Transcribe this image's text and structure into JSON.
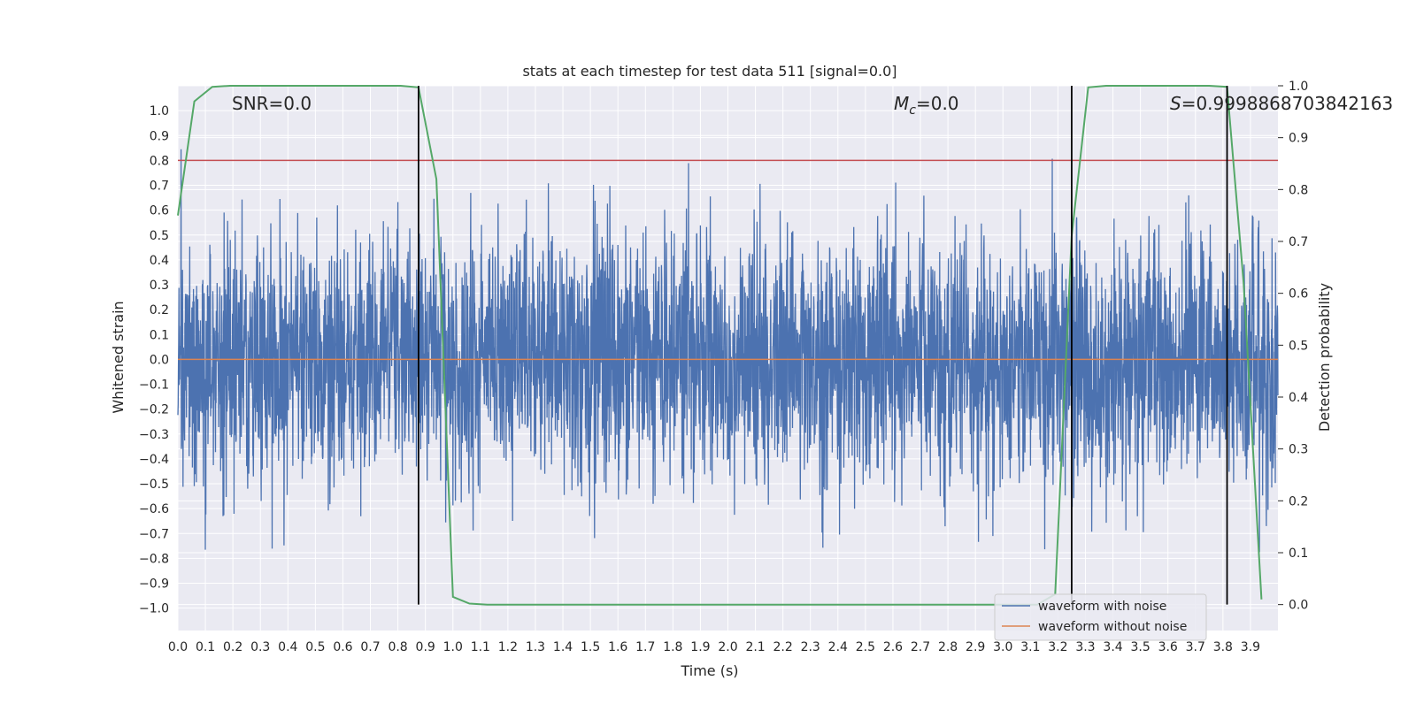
{
  "chart_data": {
    "type": "line",
    "title": "stats at each timestep for test data 511 [signal=0.0]",
    "xlabel": "Time (s)",
    "ylabel_left": "Whitened strain",
    "ylabel_right": "Detection probability",
    "xlim": [
      0.0,
      4.0
    ],
    "ylim_left": [
      -1.09,
      1.1
    ],
    "ylim_right": [
      -0.05,
      1.0
    ],
    "x_ticks": [
      "0.0",
      "0.1",
      "0.2",
      "0.3",
      "0.4",
      "0.5",
      "0.6",
      "0.7",
      "0.8",
      "0.9",
      "1.0",
      "1.1",
      "1.2",
      "1.3",
      "1.4",
      "1.5",
      "1.6",
      "1.7",
      "1.8",
      "1.9",
      "2.0",
      "2.1",
      "2.2",
      "2.3",
      "2.4",
      "2.5",
      "2.6",
      "2.7",
      "2.8",
      "2.9",
      "3.0",
      "3.1",
      "3.2",
      "3.3",
      "3.4",
      "3.5",
      "3.6",
      "3.7",
      "3.8",
      "3.9"
    ],
    "y_ticks_left": [
      "1.0",
      "0.9",
      "0.8",
      "0.7",
      "0.6",
      "0.5",
      "0.4",
      "0.3",
      "0.2",
      "0.1",
      "0.0",
      "−0.1",
      "−0.2",
      "−0.3",
      "−0.4",
      "−0.5",
      "−0.6",
      "−0.7",
      "−0.8",
      "−0.9",
      "−1.0"
    ],
    "y_ticks_right": [
      "1.0",
      "0.9",
      "0.8",
      "0.7",
      "0.6",
      "0.5",
      "0.4",
      "0.3",
      "0.2",
      "0.1",
      "0.0"
    ],
    "annotations": {
      "snr": "SNR=0.0",
      "mc_symbol": "M",
      "mc_sub": "c",
      "mc_value": "=0.0",
      "s_symbol": "S",
      "s_value": "=0.9998868703842163"
    },
    "threshold": {
      "value_left": 0.8,
      "color": "#c44e52"
    },
    "vertical_lines_x": [
      0.875,
      3.25,
      3.815
    ],
    "series": [
      {
        "name": "waveform with noise",
        "color": "#4c72b0",
        "axis": "left",
        "kind": "noise",
        "amplitude_range": [
          -0.95,
          0.9
        ],
        "sample_count": 4096
      },
      {
        "name": "waveform without noise",
        "color": "#dd8452",
        "axis": "left",
        "x": [
          0.0,
          4.0
        ],
        "values": [
          0.0,
          0.0
        ]
      },
      {
        "name": "detection probability",
        "color": "#55a868",
        "axis": "right",
        "x": [
          0.0,
          0.06,
          0.125,
          0.19,
          0.25,
          0.5,
          0.75,
          0.81,
          0.875,
          0.94,
          1.0,
          1.06,
          1.125,
          1.5,
          2.0,
          2.5,
          3.0,
          3.125,
          3.19,
          3.25,
          3.31,
          3.375,
          3.5,
          3.625,
          3.75,
          3.815,
          3.875,
          3.94
        ],
        "values": [
          0.75,
          0.97,
          0.998,
          1.0,
          1.0,
          1.0,
          1.0,
          1.0,
          0.997,
          0.82,
          0.015,
          0.002,
          0.0,
          0.0,
          0.0,
          0.0,
          0.0,
          0.0,
          0.02,
          0.71,
          0.997,
          1.0,
          1.0,
          1.0,
          1.0,
          0.998,
          0.62,
          0.01
        ]
      }
    ],
    "legend": {
      "placement": "lower-right",
      "entries": [
        "waveform with noise",
        "waveform without noise"
      ]
    },
    "grid": true,
    "colors": {
      "plot_bg": "#eaeaf2",
      "grid": "#ffffff",
      "vline": "#000000"
    }
  }
}
